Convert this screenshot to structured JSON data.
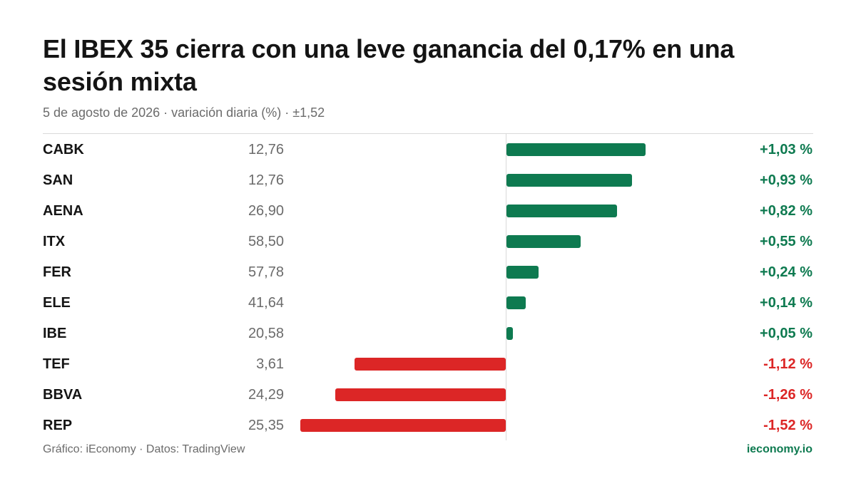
{
  "title": "El IBEX 35 cierra con una leve ganancia del 0,17%  en una sesión mixta",
  "subtitle": "5 de agosto de 2026 · variación diaria (%) · ±1,52",
  "footer": {
    "credit": "Gráfico: iEconomy · Datos: TradingView",
    "brand": "ieconomy.io"
  },
  "colors": {
    "positive": "#0e7a50",
    "negative": "#dc2626"
  },
  "chart_data": {
    "type": "bar",
    "orientation": "horizontal",
    "xlim": [
      -1.52,
      1.52
    ],
    "grid": false,
    "rows": [
      {
        "ticker": "CABK",
        "price": "12,76",
        "value": 1.03,
        "label": "+1,03 %"
      },
      {
        "ticker": "SAN",
        "price": "12,76",
        "value": 0.93,
        "label": "+0,93 %"
      },
      {
        "ticker": "AENA",
        "price": "26,90",
        "value": 0.82,
        "label": "+0,82 %"
      },
      {
        "ticker": "ITX",
        "price": "58,50",
        "value": 0.55,
        "label": "+0,55 %"
      },
      {
        "ticker": "FER",
        "price": "57,78",
        "value": 0.24,
        "label": "+0,24 %"
      },
      {
        "ticker": "ELE",
        "price": "41,64",
        "value": 0.14,
        "label": "+0,14 %"
      },
      {
        "ticker": "IBE",
        "price": "20,58",
        "value": 0.05,
        "label": "+0,05 %"
      },
      {
        "ticker": "TEF",
        "price": "3,61",
        "value": -1.12,
        "label": "-1,12 %"
      },
      {
        "ticker": "BBVA",
        "price": "24,29",
        "value": -1.26,
        "label": "-1,26 %"
      },
      {
        "ticker": "REP",
        "price": "25,35",
        "value": -1.52,
        "label": "-1,52 %"
      }
    ]
  }
}
